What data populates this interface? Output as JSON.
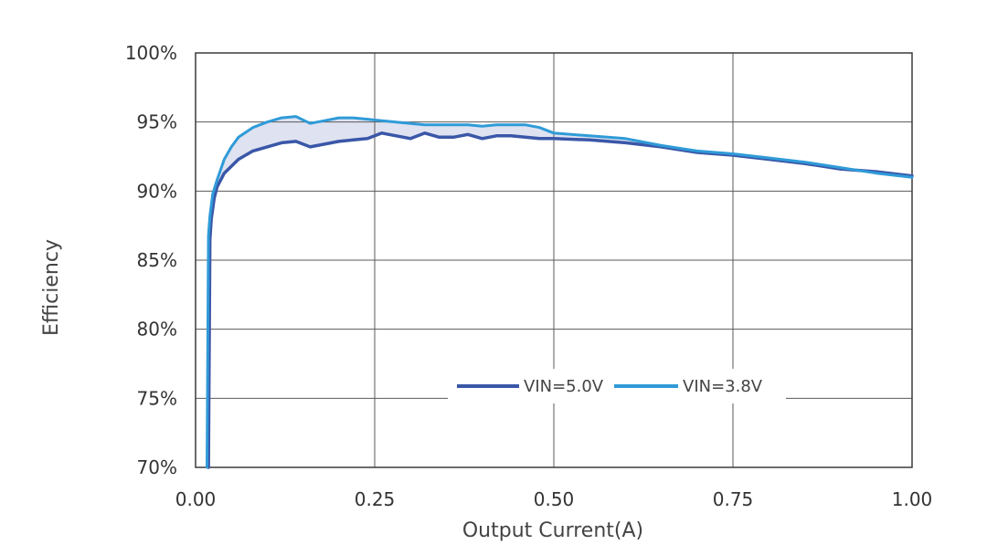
{
  "chart_data": {
    "type": "line",
    "title": "",
    "xlabel": "Output Current(A)",
    "ylabel": "Efficiency",
    "xlim": [
      0,
      1.0
    ],
    "ylim": [
      70,
      100
    ],
    "x_ticks": [
      "0.00",
      "0.25",
      "0.50",
      "0.75",
      "1.00"
    ],
    "x_tick_values": [
      0,
      0.25,
      0.5,
      0.75,
      1.0
    ],
    "y_ticks": [
      "70%",
      "75%",
      "80%",
      "85%",
      "90%",
      "95%",
      "100%"
    ],
    "y_tick_values": [
      70,
      75,
      80,
      85,
      90,
      95,
      100
    ],
    "grid": true,
    "legend_position": "lower-center",
    "colors": {
      "vin_5v": "#3a57a8",
      "vin_3_8v": "#2f9bd8",
      "fill": "#c9cfe6"
    },
    "series": [
      {
        "name": "VIN=5.0V",
        "color": "#3a57a8",
        "x": [
          0.018,
          0.02,
          0.022,
          0.026,
          0.03,
          0.04,
          0.05,
          0.06,
          0.08,
          0.1,
          0.12,
          0.14,
          0.16,
          0.18,
          0.2,
          0.22,
          0.24,
          0.26,
          0.28,
          0.3,
          0.32,
          0.34,
          0.36,
          0.38,
          0.4,
          0.42,
          0.44,
          0.46,
          0.48,
          0.5,
          0.55,
          0.6,
          0.65,
          0.7,
          0.75,
          0.8,
          0.85,
          0.9,
          0.95,
          1.0
        ],
        "y": [
          70.0,
          86.5,
          88.0,
          89.5,
          90.3,
          91.3,
          91.8,
          92.3,
          92.9,
          93.2,
          93.5,
          93.6,
          93.2,
          93.4,
          93.6,
          93.7,
          93.8,
          94.2,
          94.0,
          93.8,
          94.2,
          93.9,
          93.9,
          94.1,
          93.8,
          94.0,
          94.0,
          93.9,
          93.8,
          93.8,
          93.7,
          93.5,
          93.2,
          92.8,
          92.6,
          92.3,
          92.0,
          91.6,
          91.4,
          91.1
        ]
      },
      {
        "name": "VIN=3.8V",
        "color": "#2f9bd8",
        "x": [
          0.016,
          0.018,
          0.02,
          0.024,
          0.03,
          0.04,
          0.05,
          0.06,
          0.08,
          0.1,
          0.12,
          0.14,
          0.16,
          0.18,
          0.2,
          0.22,
          0.24,
          0.26,
          0.28,
          0.3,
          0.32,
          0.34,
          0.36,
          0.38,
          0.4,
          0.42,
          0.44,
          0.46,
          0.48,
          0.5,
          0.55,
          0.6,
          0.65,
          0.7,
          0.75,
          0.8,
          0.85,
          0.9,
          0.95,
          1.0
        ],
        "y": [
          70.0,
          86.8,
          88.2,
          89.8,
          90.8,
          92.3,
          93.2,
          93.9,
          94.6,
          95.0,
          95.3,
          95.4,
          94.9,
          95.1,
          95.3,
          95.3,
          95.2,
          95.1,
          95.0,
          94.9,
          94.8,
          94.8,
          94.8,
          94.8,
          94.7,
          94.8,
          94.8,
          94.8,
          94.6,
          94.2,
          94.0,
          93.8,
          93.3,
          92.9,
          92.7,
          92.4,
          92.1,
          91.7,
          91.3,
          91.0
        ]
      }
    ]
  }
}
